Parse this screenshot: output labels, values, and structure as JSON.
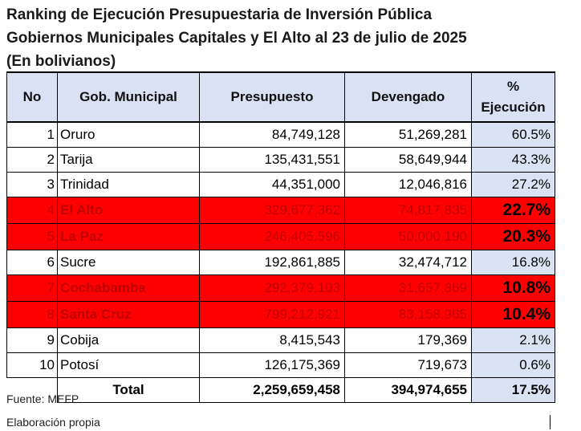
{
  "title_lines": [
    "Ranking de Ejecución Presupuestaria de Inversión Pública",
    "Gobiernos Municipales Capitales y El Alto al 23 de julio de 2025",
    "(En bolivianos)"
  ],
  "headers": {
    "no": "No",
    "municipio": "Gob. Municipal",
    "presupuesto": "Presupuesto",
    "devengado": "Devengado",
    "pct_symbol": "%",
    "pct_label": "Ejecución"
  },
  "rows": [
    {
      "no": "1",
      "name": "Oruro",
      "presupuesto": "84,749,128",
      "devengado": "51,269,281",
      "pct": "60.5%",
      "highlight": false
    },
    {
      "no": "2",
      "name": "Tarija",
      "presupuesto": "135,431,551",
      "devengado": "58,649,944",
      "pct": "43.3%",
      "highlight": false
    },
    {
      "no": "3",
      "name": "Trinidad",
      "presupuesto": "44,351,000",
      "devengado": "12,046,816",
      "pct": "27.2%",
      "highlight": false
    },
    {
      "no": "4",
      "name": "El Alto",
      "presupuesto": "329,677,362",
      "devengado": "74,817,835",
      "pct": "22.7%",
      "highlight": true
    },
    {
      "no": "5",
      "name": "La Paz",
      "presupuesto": "246,405,596",
      "devengado": "50,000,190",
      "pct": "20.3%",
      "highlight": true
    },
    {
      "no": "6",
      "name": "Sucre",
      "presupuesto": "192,861,885",
      "devengado": "32,474,712",
      "pct": "16.8%",
      "highlight": false
    },
    {
      "no": "7",
      "name": "Cochabamba",
      "presupuesto": "292,379,103",
      "devengado": "31,657,869",
      "pct": "10.8%",
      "highlight": true
    },
    {
      "no": "8",
      "name": "Santa Cruz",
      "presupuesto": "799,212,921",
      "devengado": "83,158,965",
      "pct": "10.4%",
      "highlight": true
    },
    {
      "no": "9",
      "name": "Cobija",
      "presupuesto": "8,415,543",
      "devengado": "179,369",
      "pct": "2.1%",
      "highlight": false
    },
    {
      "no": "10",
      "name": "Potosí",
      "presupuesto": "126,175,369",
      "devengado": "719,673",
      "pct": "0.6%",
      "highlight": false
    }
  ],
  "total": {
    "label": "Total",
    "presupuesto": "2,259,659,458",
    "devengado": "394,974,655",
    "pct": "17.5%"
  },
  "footer": {
    "source": "Fuente: MEFP",
    "author": "Elaboración propia"
  },
  "colors": {
    "header_bg": "#d9e1f2",
    "highlight_bg": "#ff0000",
    "highlight_text": "#c00000",
    "pct_bg": "#dae3f3"
  }
}
